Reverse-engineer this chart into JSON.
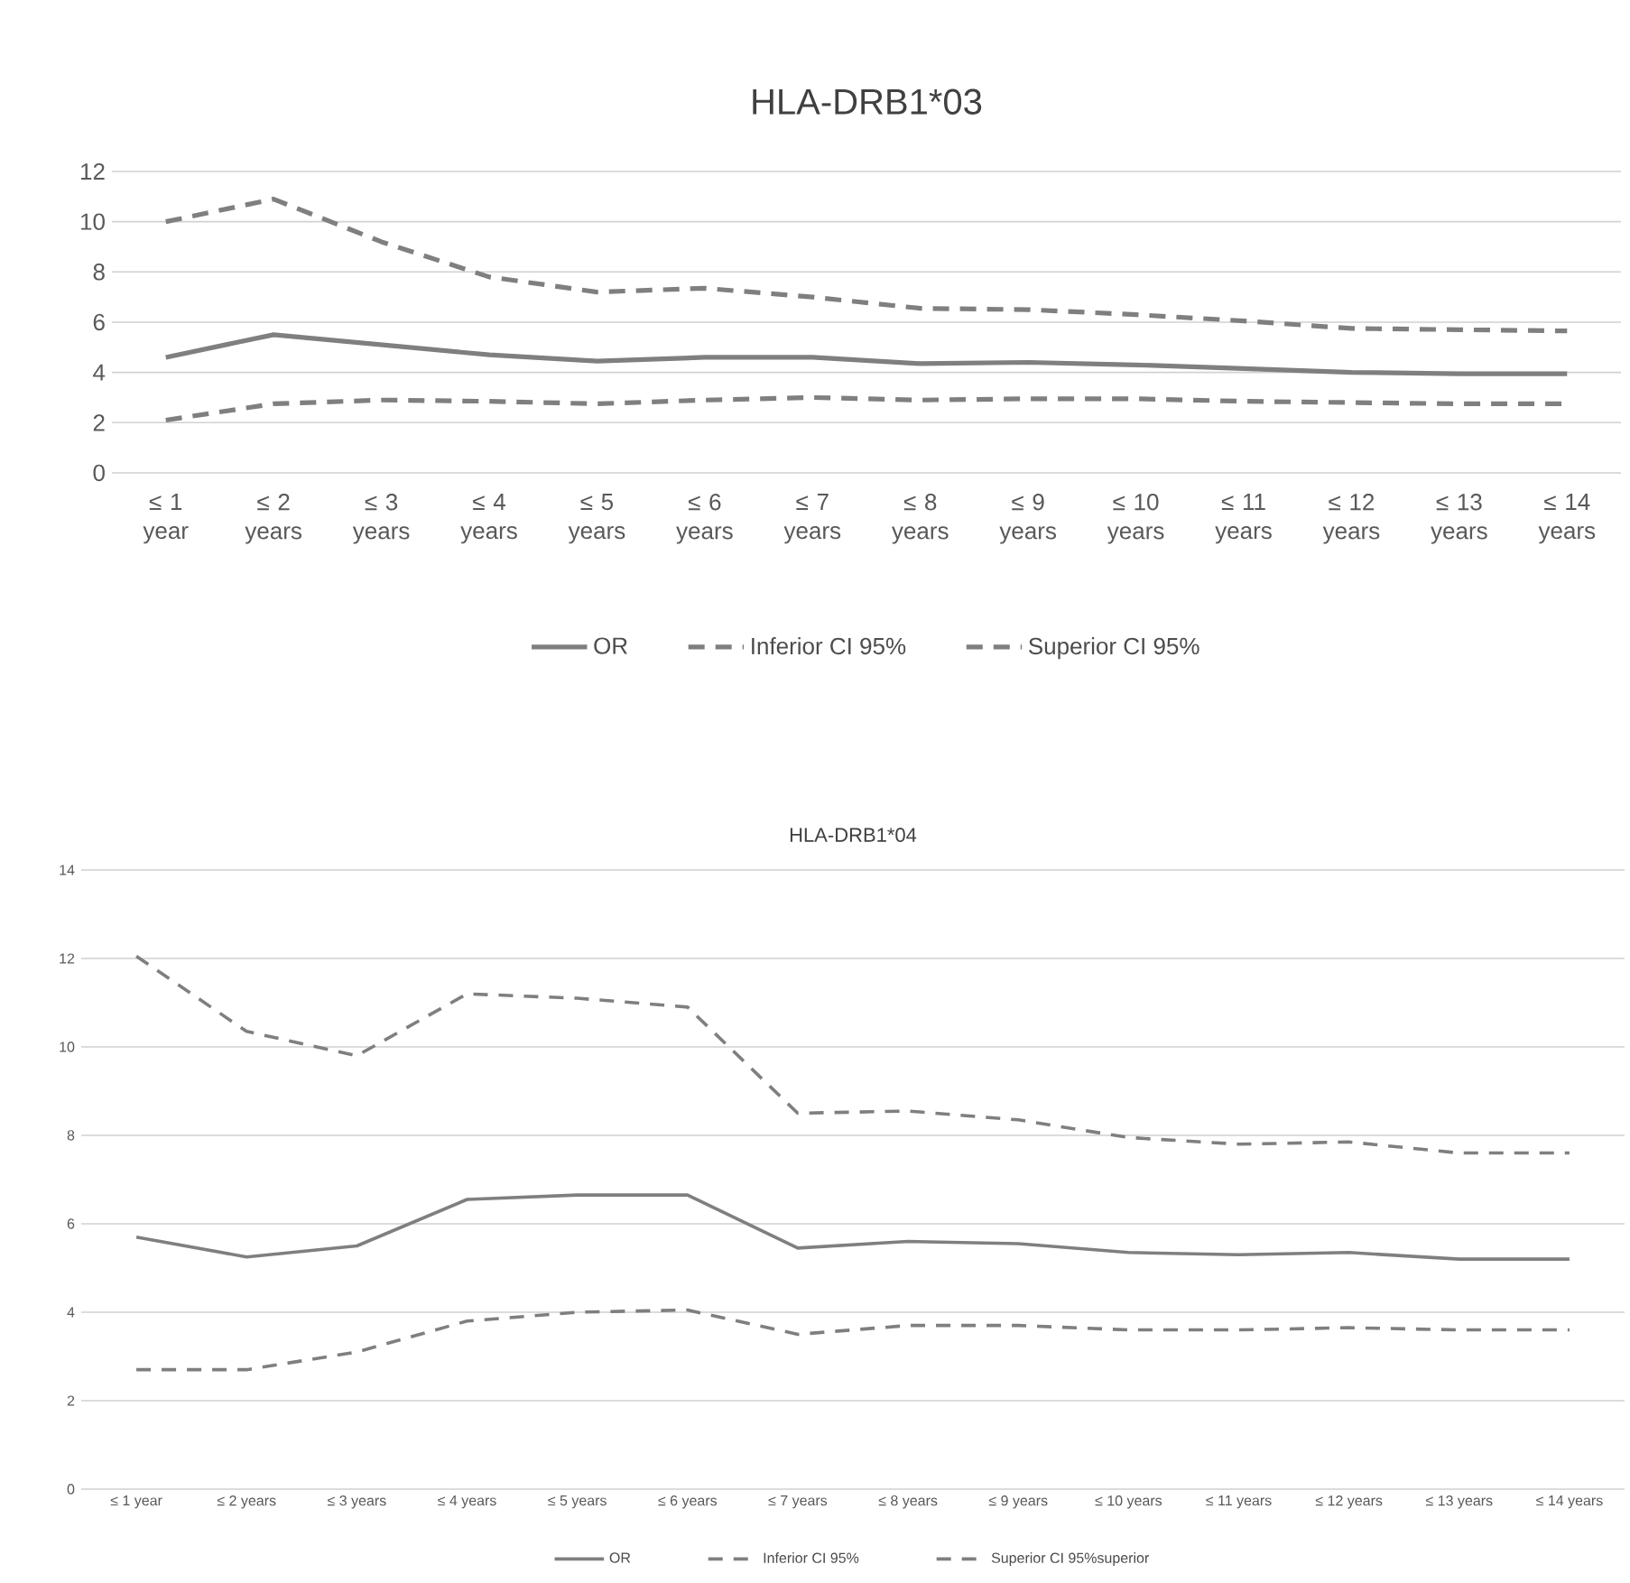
{
  "chart_data": [
    {
      "type": "line",
      "title": "HLA-DRB1*03",
      "categories": [
        "≤ 1 year",
        "≤ 2 years",
        "≤ 3 years",
        "≤ 4 years",
        "≤ 5 years",
        "≤ 6 years",
        "≤ 7 years",
        "≤ 8 years",
        "≤ 9 years",
        "≤ 10 years",
        "≤ 11 years",
        "≤ 12 years",
        "≤ 13 years",
        "≤ 14 years"
      ],
      "series": [
        {
          "name": "OR",
          "color": "#7f7f7f",
          "line_style": "solid",
          "values": [
            4.6,
            5.5,
            5.1,
            4.7,
            4.45,
            4.6,
            4.6,
            4.35,
            4.4,
            4.3,
            4.15,
            4.0,
            3.95,
            3.95
          ]
        },
        {
          "name": "Inferior CI 95%",
          "color": "#7f7f7f",
          "line_style": "dashed",
          "values": [
            2.1,
            2.75,
            2.9,
            2.85,
            2.75,
            2.9,
            3.0,
            2.9,
            2.95,
            2.95,
            2.85,
            2.8,
            2.75,
            2.75
          ]
        },
        {
          "name": "Superior CI 95%",
          "color": "#7f7f7f",
          "line_style": "dashed",
          "values": [
            10.0,
            10.9,
            9.2,
            7.8,
            7.2,
            7.35,
            7.0,
            6.55,
            6.5,
            6.3,
            6.05,
            5.75,
            5.7,
            5.65
          ]
        }
      ],
      "ylim": [
        0,
        12
      ],
      "yticks": [
        0,
        2,
        4,
        6,
        8,
        10,
        12
      ],
      "grid": "y",
      "legend": "bottom",
      "marker": "none"
    },
    {
      "type": "line",
      "title": "HLA-DRB1*04",
      "categories": [
        "≤ 1 year",
        "≤ 2 years",
        "≤ 3 years",
        "≤ 4 years",
        "≤ 5 years",
        "≤ 6 years",
        "≤ 7 years",
        "≤ 8 years",
        "≤ 9 years",
        "≤ 10 years",
        "≤ 11 years",
        "≤ 12 years",
        "≤ 13 years",
        "≤ 14 years"
      ],
      "series": [
        {
          "name": "OR",
          "color": "#7f7f7f",
          "line_style": "solid",
          "values": [
            5.7,
            5.25,
            5.5,
            6.55,
            6.65,
            6.65,
            5.45,
            5.6,
            5.55,
            5.35,
            5.3,
            5.35,
            5.2,
            5.2
          ]
        },
        {
          "name": "Inferior CI 95%",
          "color": "#7f7f7f",
          "line_style": "dashed",
          "values": [
            2.7,
            2.7,
            3.1,
            3.8,
            4.0,
            4.05,
            3.5,
            3.7,
            3.7,
            3.6,
            3.6,
            3.65,
            3.6,
            3.6
          ]
        },
        {
          "name": "Superior CI 95%superior",
          "color": "#7f7f7f",
          "line_style": "dashed",
          "values": [
            12.05,
            10.35,
            9.8,
            11.2,
            11.1,
            10.9,
            8.5,
            8.55,
            8.35,
            7.95,
            7.8,
            7.85,
            7.6,
            7.6
          ]
        }
      ],
      "ylim": [
        0,
        14
      ],
      "yticks": [
        0,
        2,
        4,
        6,
        8,
        10,
        12,
        14
      ],
      "grid": "y",
      "legend": "bottom",
      "marker": "none"
    }
  ]
}
